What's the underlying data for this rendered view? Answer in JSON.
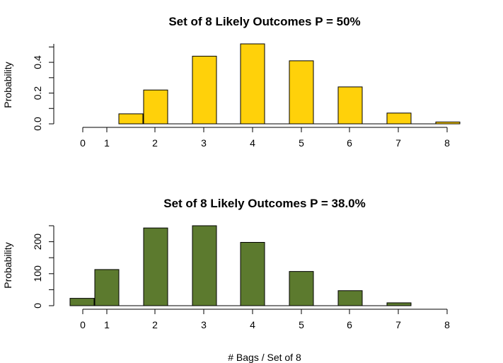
{
  "chart_data": [
    {
      "type": "bar",
      "title": "Set of 8 Likely Outcomes P = 50%",
      "ylabel": "Probability",
      "xlabel": "",
      "color": "#FFD10A",
      "x_ticks": [
        "0",
        "1",
        "2",
        "3",
        "4",
        "5",
        "6",
        "7",
        "8"
      ],
      "y_ticks": [
        "0.0",
        "0.2",
        "0.4"
      ],
      "y_tick_values": [
        0,
        0.2,
        0.4
      ],
      "y_minor_ticks": [
        0.1,
        0.3,
        0.5
      ],
      "ylim": [
        0,
        0.52
      ],
      "categories": [
        "0",
        "1",
        "2",
        "3",
        "4",
        "5",
        "6",
        "7",
        "8"
      ],
      "values": [
        0,
        0.065,
        0.22,
        0.44,
        0.52,
        0.41,
        0.24,
        0.07,
        0.012
      ]
    },
    {
      "type": "bar",
      "title": "Set of 8 Likely Outcomes P = 38.0%",
      "ylabel": "Probability",
      "xlabel": "# Bags / Set of 8",
      "color": "#5C7A2E",
      "x_ticks": [
        "0",
        "1",
        "2",
        "3",
        "4",
        "5",
        "6",
        "7",
        "8"
      ],
      "y_ticks": [
        "0",
        "100",
        "200"
      ],
      "y_tick_values": [
        0,
        100,
        200
      ],
      "y_minor_ticks": [
        50,
        150,
        250
      ],
      "ylim": [
        0,
        250
      ],
      "categories": [
        "0",
        "1",
        "2",
        "3",
        "4",
        "5",
        "6",
        "7"
      ],
      "values": [
        23,
        113,
        243,
        250,
        198,
        107,
        47,
        9
      ]
    }
  ]
}
